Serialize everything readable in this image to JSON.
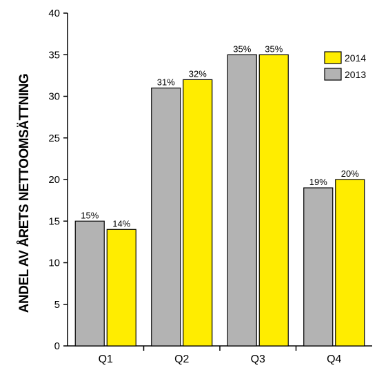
{
  "chart_data": {
    "type": "bar",
    "categories": [
      "Q1",
      "Q2",
      "Q3",
      "Q4"
    ],
    "series": [
      {
        "name": "2013",
        "color": "#b3b3b3",
        "values": [
          15,
          31,
          35,
          19
        ],
        "labels": [
          "15%",
          "31%",
          "35%",
          "19%"
        ]
      },
      {
        "name": "2014",
        "color": "#ffed00",
        "values": [
          14,
          32,
          35,
          20
        ],
        "labels": [
          "14%",
          "32%",
          "35%",
          "20%"
        ]
      }
    ],
    "title": "",
    "xlabel": "",
    "ylabel": "ANDEL AV ÅRETS NETTOOMSÄTTNING",
    "ylim": [
      0,
      40
    ],
    "yticks": [
      0,
      5,
      10,
      15,
      20,
      25,
      30,
      35,
      40
    ],
    "grid": false,
    "legend": {
      "placement": "top-right",
      "order": [
        "2014",
        "2013"
      ]
    }
  }
}
